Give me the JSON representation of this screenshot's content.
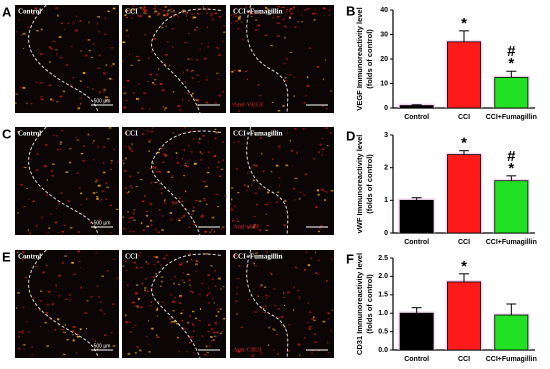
{
  "panels": [
    {
      "label": "A",
      "images": [
        "Control",
        "CCI",
        "CCI+Fumagillin"
      ],
      "scale": "500 μm",
      "stain": "Anti-VEGF"
    },
    {
      "label": "C",
      "images": [
        "Control",
        "CCI",
        "CCI+Fumagillin"
      ],
      "scale": "500 μm",
      "stain": "Anti-vWF"
    },
    {
      "label": "E",
      "images": [
        "Control",
        "CCI",
        "CCI+Fumagillin"
      ],
      "scale": "500 μm",
      "stain": "Anti-CD31"
    }
  ],
  "chart_data": [
    {
      "panel_label": "B",
      "type": "bar",
      "ylabel": "VEGF Immunoreactivity level",
      "ylabel2": "(folds of control)",
      "categories": [
        "Control",
        "CCI",
        "CCI+Fumagillin"
      ],
      "values": [
        1,
        27,
        12.5
      ],
      "errors": [
        0.3,
        4.5,
        2.5
      ],
      "colors": [
        "#000000",
        "#ff1a1a",
        "#22e022"
      ],
      "annotations": [
        null,
        [
          "*"
        ],
        [
          "#",
          "*"
        ]
      ],
      "ylim": [
        0,
        40
      ],
      "yticks": [
        0,
        10,
        20,
        30,
        40
      ]
    },
    {
      "panel_label": "D",
      "type": "bar",
      "ylabel": "vWF Immunoreactivity level",
      "ylabel2": "(folds of control)",
      "categories": [
        "Control",
        "CCI",
        "CCI+Fumagillin"
      ],
      "values": [
        1,
        2.4,
        1.6
      ],
      "errors": [
        0.08,
        0.12,
        0.15
      ],
      "colors": [
        "#000000",
        "#ff1a1a",
        "#22e022"
      ],
      "annotations": [
        null,
        [
          "*"
        ],
        [
          "#",
          "*"
        ]
      ],
      "ylim": [
        0,
        3
      ],
      "yticks": [
        0,
        1,
        2,
        3
      ]
    },
    {
      "panel_label": "F",
      "type": "bar",
      "ylabel": "CD31 Immunoreactivity level",
      "ylabel2": "(folds of control)",
      "categories": [
        "Control",
        "CCI",
        "CCI+Fumagillin"
      ],
      "values": [
        1,
        1.85,
        0.95
      ],
      "errors": [
        0.15,
        0.22,
        0.3
      ],
      "colors": [
        "#000000",
        "#ff1a1a",
        "#22e022"
      ],
      "annotations": [
        null,
        [
          "*"
        ],
        null
      ],
      "ylim": [
        0,
        2.5
      ],
      "yticks": [
        {
          "value": 0,
          "label": "0.0"
        },
        0.5,
        {
          "value": 1,
          "label": "1.0"
        },
        1.5,
        {
          "value": 2,
          "label": "2.0"
        },
        2.5
      ]
    }
  ]
}
